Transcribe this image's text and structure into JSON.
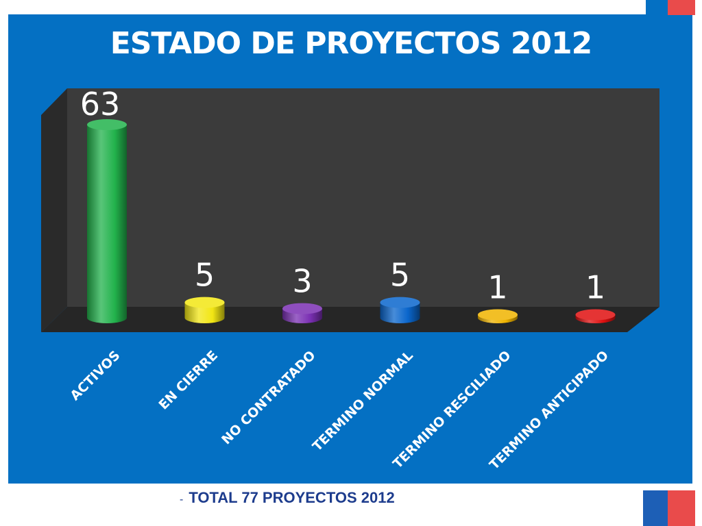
{
  "slide": {
    "title": "ESTADO DE PROYECTOS 2012",
    "footer_bullet": "-",
    "footer_text": "TOTAL 77 PROYECTOS 2012"
  },
  "colors": {
    "panel_background": "#0470c3",
    "plot_back_wall": "#3b3b3b",
    "plot_side_wall": "#2a2a2a",
    "plot_floor": "#262626",
    "footer_text": "#1d3c8d",
    "accent_red": "#e94b4b"
  },
  "chart_data": {
    "type": "bar",
    "style": "3d-cylinder",
    "title": "ESTADO DE PROYECTOS 2012",
    "categories": [
      "ACTIVOS",
      "EN CIERRE",
      "NO CONTRATADO",
      "TERMINO NORMAL",
      "TERMINO RESCILIADO",
      "TERMINO ANTICIPADO"
    ],
    "values": [
      63,
      5,
      3,
      5,
      1,
      1
    ],
    "data_labels": [
      "63",
      "5",
      "3",
      "5",
      "1",
      "1"
    ],
    "bar_colors": [
      "#22b24c",
      "#f2e614",
      "#7a2fb3",
      "#0a66cc",
      "#f0b400",
      "#e01010"
    ],
    "xlabel": "",
    "ylabel": "",
    "ylim": [
      0,
      63
    ],
    "grid": false,
    "legend": "none"
  }
}
